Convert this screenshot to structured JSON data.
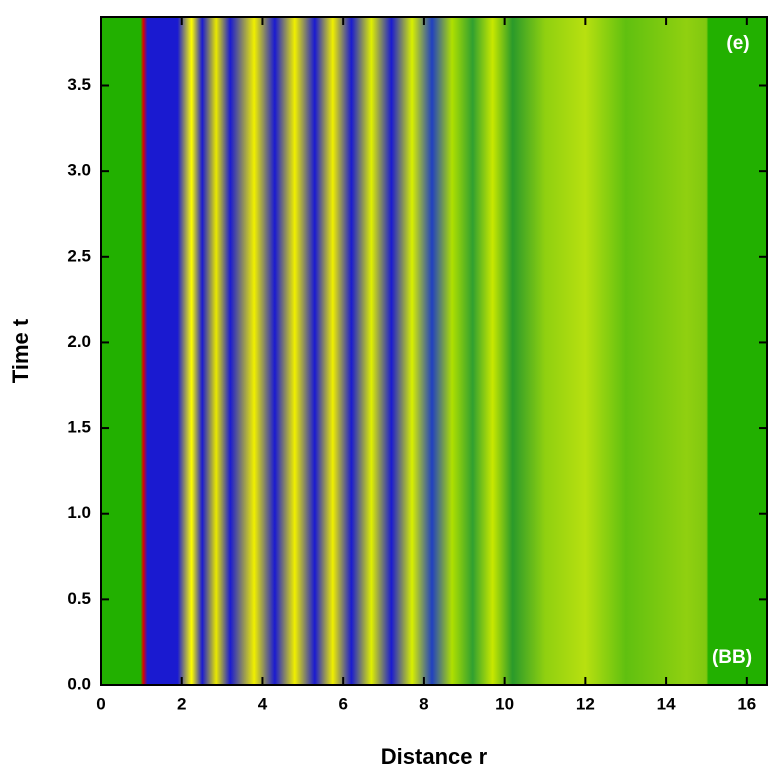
{
  "chart_data": {
    "type": "heatmap",
    "xlabel": "Distance  r",
    "ylabel": "Time  t",
    "annotations": [
      "(e)",
      "(BB)"
    ],
    "xlim": [
      0,
      16.5
    ],
    "ylim": [
      0,
      3.9
    ],
    "xticks": [
      0,
      2,
      4,
      6,
      8,
      10,
      12,
      14,
      16
    ],
    "yticks": [
      {
        "value": 0,
        "label": "0.0"
      },
      {
        "value": 0.5,
        "label": "0.5"
      },
      {
        "value": 1,
        "label": "1.0"
      },
      {
        "value": 1.5,
        "label": "1.5"
      },
      {
        "value": 2,
        "label": "2.0"
      },
      {
        "value": 2.5,
        "label": "2.5"
      },
      {
        "value": 3,
        "label": "3.0"
      },
      {
        "value": 3.5,
        "label": "3.5"
      }
    ]
  }
}
